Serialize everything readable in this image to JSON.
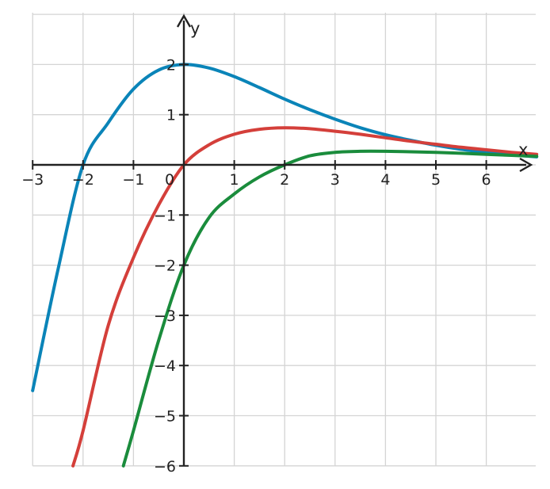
{
  "chart_data": {
    "type": "line",
    "title": "",
    "xlabel": "x",
    "ylabel": "y",
    "xlim": [
      -3,
      7
    ],
    "ylim": [
      -6,
      3
    ],
    "grid": true,
    "x_ticks": [
      -3,
      -2,
      -1,
      0,
      1,
      2,
      3,
      4,
      5,
      6
    ],
    "y_ticks": [
      -6,
      -5,
      -4,
      -3,
      -2,
      -1,
      1,
      2
    ],
    "x_tick_labels": [
      "−3",
      "−2",
      "−1",
      "0",
      "1",
      "2",
      "3",
      "4",
      "5",
      "6"
    ],
    "y_tick_labels": [
      "−6",
      "−5",
      "−4",
      "−3",
      "−2",
      "−1",
      "1",
      "2"
    ],
    "series": [
      {
        "color": "#0a84b8",
        "x": [
          -3,
          -2.5,
          -2,
          -1.5,
          -1,
          -0.5,
          0,
          0.5,
          1,
          1.5,
          2,
          2.5,
          3,
          3.5,
          4,
          4.5,
          5,
          5.5,
          6,
          6.5,
          7
        ],
        "y": [
          -4.5,
          -2.1,
          0.0,
          0.84,
          1.51,
          1.89,
          2.0,
          1.93,
          1.76,
          1.54,
          1.31,
          1.1,
          0.91,
          0.74,
          0.6,
          0.49,
          0.39,
          0.31,
          0.25,
          0.2,
          0.16
        ]
      },
      {
        "color": "#d43f3a",
        "x": [
          -2.2,
          -2,
          -1.5,
          -1,
          -0.5,
          0,
          0.5,
          1,
          1.5,
          2,
          2.5,
          3,
          3.5,
          4,
          4.5,
          5,
          5.5,
          6,
          6.5,
          7
        ],
        "y": [
          -6.0,
          -5.3,
          -3.2,
          -1.85,
          -0.8,
          0.0,
          0.4,
          0.61,
          0.71,
          0.74,
          0.72,
          0.67,
          0.61,
          0.54,
          0.47,
          0.41,
          0.35,
          0.3,
          0.25,
          0.21
        ]
      },
      {
        "color": "#1a8c3c",
        "x": [
          -1.2,
          -1,
          -0.5,
          0,
          0.5,
          1,
          1.5,
          2,
          2.5,
          3,
          3.5,
          4,
          4.5,
          5,
          5.5,
          6,
          6.5,
          7
        ],
        "y": [
          -6.0,
          -5.3,
          -3.5,
          -2.0,
          -1.05,
          -0.58,
          -0.24,
          0.0,
          0.18,
          0.25,
          0.27,
          0.27,
          0.26,
          0.25,
          0.23,
          0.21,
          0.19,
          0.17
        ]
      }
    ]
  }
}
